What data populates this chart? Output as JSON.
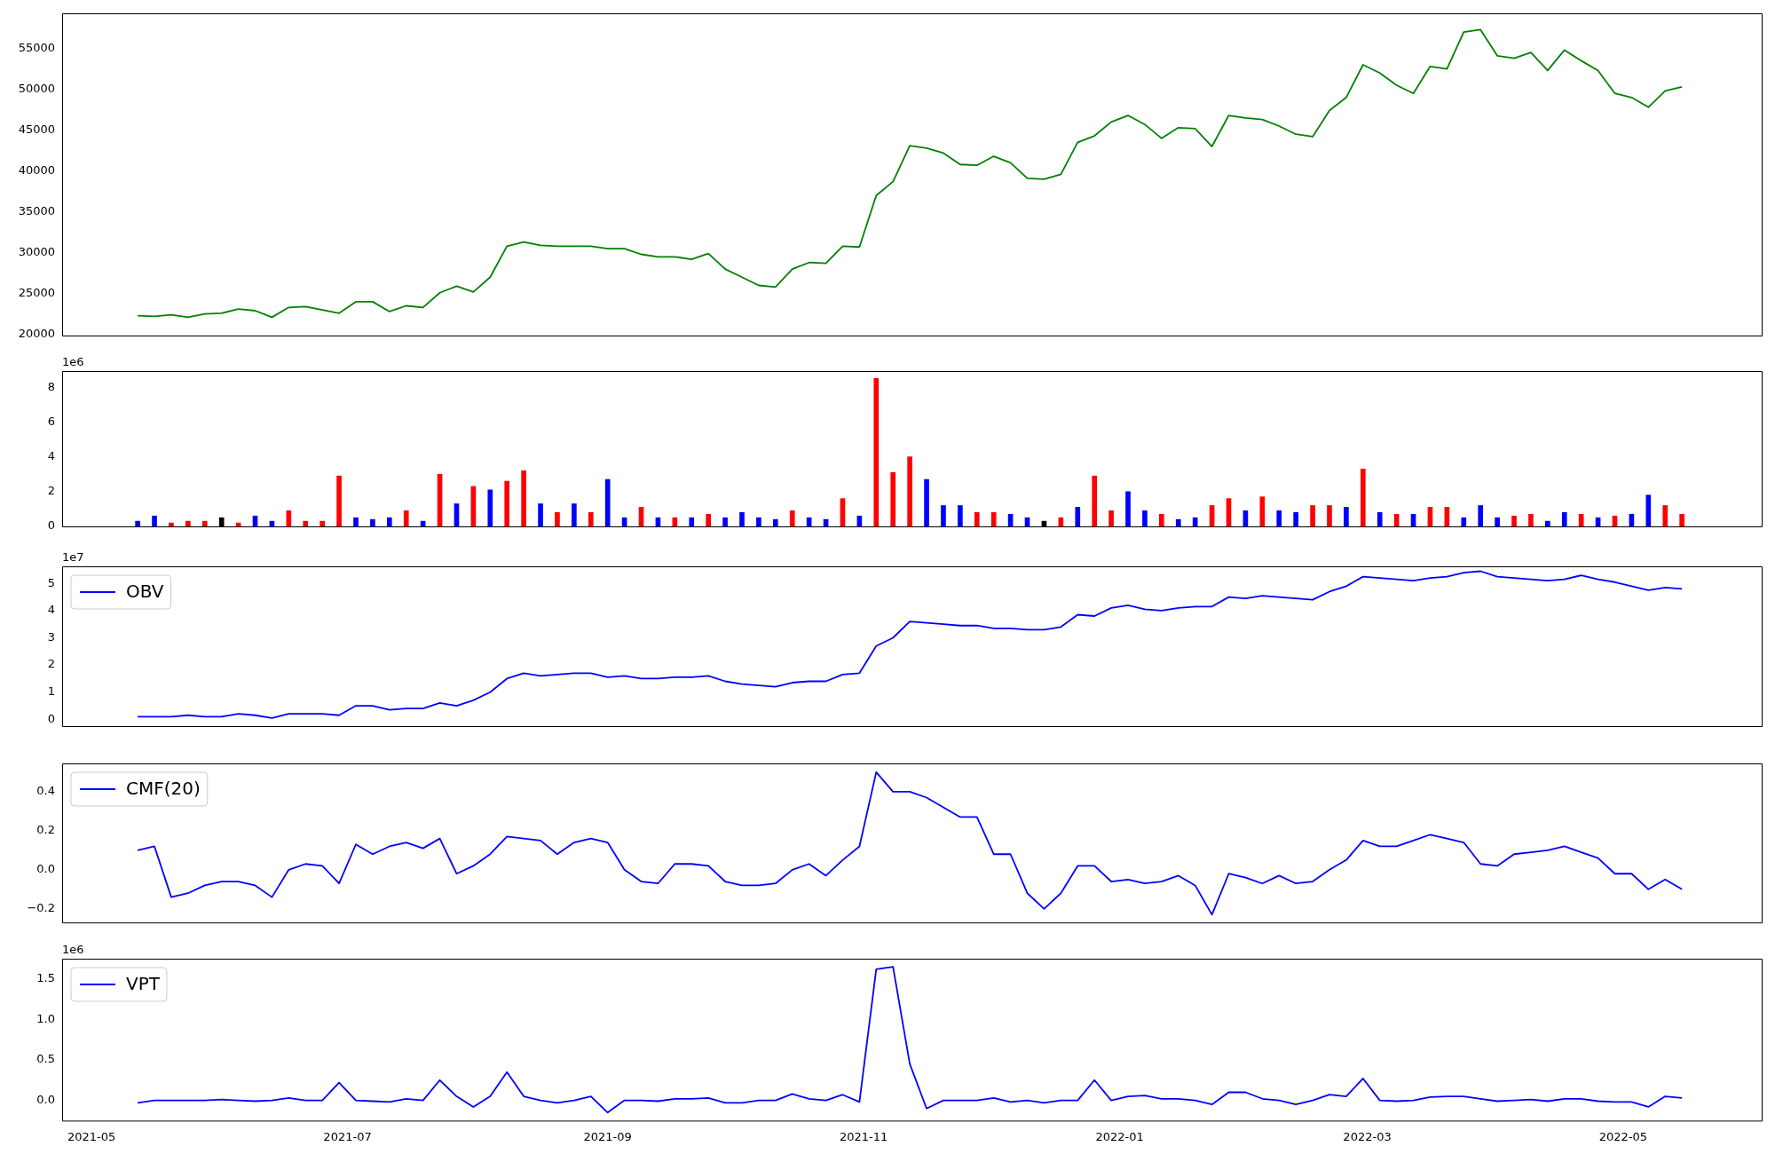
{
  "chart_data": [
    {
      "type": "line",
      "tick_labels": "y",
      "grid": false,
      "xlim": [
        "2021-04-24",
        "2022-06-03"
      ],
      "ylim": [
        19860,
        59300
      ],
      "yticks": [
        20000,
        25000,
        30000,
        35000,
        40000,
        45000,
        50000,
        55000
      ],
      "color": "#008000",
      "x": [
        "2021-05-12",
        "2021-05-16",
        "2021-05-20",
        "2021-05-24",
        "2021-05-28",
        "2021-06-01",
        "2021-06-05",
        "2021-06-09",
        "2021-06-13",
        "2021-06-17",
        "2021-06-21",
        "2021-06-25",
        "2021-06-29",
        "2021-07-03",
        "2021-07-07",
        "2021-07-11",
        "2021-07-15",
        "2021-07-19",
        "2021-07-23",
        "2021-07-27",
        "2021-07-31",
        "2021-08-04",
        "2021-08-08",
        "2021-08-12",
        "2021-08-16",
        "2021-08-20",
        "2021-08-24",
        "2021-08-28",
        "2021-09-01",
        "2021-09-05",
        "2021-09-09",
        "2021-09-13",
        "2021-09-17",
        "2021-09-21",
        "2021-09-25",
        "2021-09-29",
        "2021-10-03",
        "2021-10-07",
        "2021-10-11",
        "2021-10-15",
        "2021-10-19",
        "2021-10-23",
        "2021-10-27",
        "2021-10-31",
        "2021-11-04",
        "2021-11-08",
        "2021-11-12",
        "2021-11-16",
        "2021-11-20",
        "2021-11-24",
        "2021-11-28",
        "2021-12-02",
        "2021-12-06",
        "2021-12-10",
        "2021-12-14",
        "2021-12-18",
        "2021-12-22",
        "2021-12-26",
        "2021-12-30",
        "2022-01-03",
        "2022-01-07",
        "2022-01-11",
        "2022-01-15",
        "2022-01-19",
        "2022-01-23",
        "2022-01-27",
        "2022-01-31",
        "2022-02-04",
        "2022-02-08",
        "2022-02-12",
        "2022-02-16",
        "2022-02-20",
        "2022-02-24",
        "2022-02-28",
        "2022-03-04",
        "2022-03-08",
        "2022-03-12",
        "2022-03-16",
        "2022-03-20",
        "2022-03-24",
        "2022-03-28",
        "2022-04-01",
        "2022-04-05",
        "2022-04-09",
        "2022-04-13",
        "2022-04-17",
        "2022-04-21",
        "2022-04-25",
        "2022-04-29",
        "2022-05-03",
        "2022-05-07",
        "2022-05-11",
        "2022-05-15"
      ],
      "values": [
        22300,
        22200,
        22400,
        22100,
        22500,
        22600,
        23100,
        22900,
        22100,
        23300,
        23400,
        23000,
        22600,
        24000,
        24000,
        22800,
        23500,
        23300,
        25100,
        25900,
        25200,
        27000,
        30800,
        31300,
        30900,
        30800,
        30800,
        30800,
        30500,
        30500,
        29800,
        29500,
        29500,
        29200,
        29900,
        28000,
        27000,
        26000,
        25800,
        28000,
        28800,
        28700,
        30800,
        30700,
        37000,
        38700,
        43100,
        42800,
        42200,
        40800,
        40700,
        41800,
        41000,
        39100,
        39000,
        39600,
        43500,
        44300,
        46000,
        46800,
        45700,
        44000,
        45300,
        45200,
        43000,
        46800,
        46500,
        46300,
        45500,
        44500,
        44200,
        47400,
        49000,
        53000,
        52000,
        50500,
        49500,
        52800,
        52500,
        57000,
        57300,
        54100,
        53800,
        54500,
        52300,
        54800,
        53500,
        52300,
        49500,
        49000,
        47800,
        49800,
        50300
      ]
    },
    {
      "type": "bar",
      "tick_labels": "y",
      "grid": false,
      "annotations": [
        "1e6"
      ],
      "xlim": [
        "2021-04-24",
        "2022-06-03"
      ],
      "ylim": [
        0,
        8.93
      ],
      "yticks": [
        0,
        2,
        4,
        6,
        8
      ],
      "x": [
        "2021-05-12",
        "2021-05-16",
        "2021-05-20",
        "2021-05-24",
        "2021-05-28",
        "2021-06-01",
        "2021-06-05",
        "2021-06-09",
        "2021-06-13",
        "2021-06-17",
        "2021-06-21",
        "2021-06-25",
        "2021-06-29",
        "2021-07-03",
        "2021-07-07",
        "2021-07-11",
        "2021-07-15",
        "2021-07-19",
        "2021-07-23",
        "2021-07-27",
        "2021-07-31",
        "2021-08-04",
        "2021-08-08",
        "2021-08-12",
        "2021-08-16",
        "2021-08-20",
        "2021-08-24",
        "2021-08-28",
        "2021-09-01",
        "2021-09-05",
        "2021-09-09",
        "2021-09-13",
        "2021-09-17",
        "2021-09-21",
        "2021-09-25",
        "2021-09-29",
        "2021-10-03",
        "2021-10-07",
        "2021-10-11",
        "2021-10-15",
        "2021-10-19",
        "2021-10-23",
        "2021-10-27",
        "2021-10-31",
        "2021-11-04",
        "2021-11-08",
        "2021-11-12",
        "2021-11-16",
        "2021-11-20",
        "2021-11-24",
        "2021-11-28",
        "2021-12-02",
        "2021-12-06",
        "2021-12-10",
        "2021-12-14",
        "2021-12-18",
        "2021-12-22",
        "2021-12-26",
        "2021-12-30",
        "2022-01-03",
        "2022-01-07",
        "2022-01-11",
        "2022-01-15",
        "2022-01-19",
        "2022-01-23",
        "2022-01-27",
        "2022-01-31",
        "2022-02-04",
        "2022-02-08",
        "2022-02-12",
        "2022-02-16",
        "2022-02-20",
        "2022-02-24",
        "2022-02-28",
        "2022-03-04",
        "2022-03-08",
        "2022-03-12",
        "2022-03-16",
        "2022-03-20",
        "2022-03-24",
        "2022-03-28",
        "2022-04-01",
        "2022-04-05",
        "2022-04-09",
        "2022-04-13",
        "2022-04-17",
        "2022-04-21",
        "2022-04-25",
        "2022-04-29",
        "2022-05-03",
        "2022-05-07",
        "2022-05-11",
        "2022-05-15"
      ],
      "values": [
        0.3,
        0.6,
        0.2,
        0.3,
        0.3,
        0.5,
        0.2,
        0.6,
        0.3,
        0.9,
        0.3,
        0.3,
        2.9,
        0.5,
        0.4,
        0.5,
        0.9,
        0.3,
        3.0,
        1.3,
        2.3,
        2.1,
        2.6,
        3.2,
        1.3,
        0.8,
        1.3,
        0.8,
        2.7,
        0.5,
        1.1,
        0.5,
        0.5,
        0.5,
        0.7,
        0.5,
        0.8,
        0.5,
        0.4,
        0.9,
        0.5,
        0.4,
        1.6,
        0.6,
        8.5,
        3.1,
        4.0,
        2.7,
        1.2,
        1.2,
        0.8,
        0.8,
        0.7,
        0.5,
        0.3,
        0.5,
        1.1,
        2.9,
        0.9,
        2.0,
        0.9,
        0.7,
        0.4,
        0.5,
        1.2,
        1.6,
        0.9,
        1.7,
        0.9,
        0.8,
        1.2,
        1.2,
        1.1,
        3.3,
        0.8,
        0.7,
        0.7,
        1.1,
        1.1,
        0.5,
        1.2,
        0.5,
        0.6,
        0.7,
        0.3,
        0.8,
        0.7,
        0.5,
        0.6,
        0.7,
        1.8,
        1.2,
        0.7
      ],
      "colors": [
        "#0000ff",
        "#0000ff",
        "#ff0000",
        "#ff0000",
        "#ff0000",
        "#000000",
        "#ff0000",
        "#0000ff",
        "#0000ff",
        "#ff0000",
        "#ff0000",
        "#ff0000",
        "#ff0000",
        "#0000ff",
        "#0000ff",
        "#0000ff",
        "#ff0000",
        "#0000ff",
        "#ff0000",
        "#0000ff",
        "#ff0000",
        "#0000ff",
        "#ff0000",
        "#ff0000",
        "#0000ff",
        "#ff0000",
        "#0000ff",
        "#ff0000",
        "#0000ff",
        "#0000ff",
        "#ff0000",
        "#0000ff",
        "#ff0000",
        "#0000ff",
        "#ff0000",
        "#0000ff",
        "#0000ff",
        "#0000ff",
        "#0000ff",
        "#ff0000",
        "#0000ff",
        "#0000ff",
        "#ff0000",
        "#0000ff",
        "#ff0000",
        "#ff0000",
        "#ff0000",
        "#0000ff",
        "#0000ff",
        "#0000ff",
        "#ff0000",
        "#ff0000",
        "#0000ff",
        "#0000ff",
        "#000000",
        "#ff0000",
        "#0000ff",
        "#ff0000",
        "#ff0000",
        "#0000ff",
        "#0000ff",
        "#ff0000",
        "#0000ff",
        "#0000ff",
        "#ff0000",
        "#ff0000",
        "#0000ff",
        "#ff0000",
        "#0000ff",
        "#0000ff",
        "#ff0000",
        "#ff0000",
        "#0000ff",
        "#ff0000",
        "#0000ff",
        "#ff0000",
        "#0000ff",
        "#ff0000",
        "#ff0000",
        "#0000ff",
        "#0000ff",
        "#0000ff",
        "#ff0000",
        "#ff0000",
        "#0000ff",
        "#0000ff",
        "#ff0000",
        "#0000ff",
        "#ff0000",
        "#0000ff",
        "#0000ff",
        "#ff0000",
        "#ff0000"
      ]
    },
    {
      "type": "line",
      "tick_labels": "y",
      "grid": false,
      "legend": "top left",
      "annotations": [
        "1e7"
      ],
      "xlim": [
        "2021-04-24",
        "2022-06-03"
      ],
      "ylim": [
        -0.25,
        5.63
      ],
      "yticks": [
        0,
        1,
        2,
        3,
        4,
        5
      ],
      "x": [
        "2021-05-12",
        "2021-05-16",
        "2021-05-20",
        "2021-05-24",
        "2021-05-28",
        "2021-06-01",
        "2021-06-05",
        "2021-06-09",
        "2021-06-13",
        "2021-06-17",
        "2021-06-21",
        "2021-06-25",
        "2021-06-29",
        "2021-07-03",
        "2021-07-07",
        "2021-07-11",
        "2021-07-15",
        "2021-07-19",
        "2021-07-23",
        "2021-07-27",
        "2021-07-31",
        "2021-08-04",
        "2021-08-08",
        "2021-08-12",
        "2021-08-16",
        "2021-08-20",
        "2021-08-24",
        "2021-08-28",
        "2021-09-01",
        "2021-09-05",
        "2021-09-09",
        "2021-09-13",
        "2021-09-17",
        "2021-09-21",
        "2021-09-25",
        "2021-09-29",
        "2021-10-03",
        "2021-10-07",
        "2021-10-11",
        "2021-10-15",
        "2021-10-19",
        "2021-10-23",
        "2021-10-27",
        "2021-10-31",
        "2021-11-04",
        "2021-11-08",
        "2021-11-12",
        "2021-11-16",
        "2021-11-20",
        "2021-11-24",
        "2021-11-28",
        "2021-12-02",
        "2021-12-06",
        "2021-12-10",
        "2021-12-14",
        "2021-12-18",
        "2021-12-22",
        "2021-12-26",
        "2021-12-30",
        "2022-01-03",
        "2022-01-07",
        "2022-01-11",
        "2022-01-15",
        "2022-01-19",
        "2022-01-23",
        "2022-01-27",
        "2022-01-31",
        "2022-02-04",
        "2022-02-08",
        "2022-02-12",
        "2022-02-16",
        "2022-02-20",
        "2022-02-24",
        "2022-02-28",
        "2022-03-04",
        "2022-03-08",
        "2022-03-12",
        "2022-03-16",
        "2022-03-20",
        "2022-03-24",
        "2022-03-28",
        "2022-04-01",
        "2022-04-05",
        "2022-04-09",
        "2022-04-13",
        "2022-04-17",
        "2022-04-21",
        "2022-04-25",
        "2022-04-29",
        "2022-05-03",
        "2022-05-07",
        "2022-05-11",
        "2022-05-15"
      ],
      "series": [
        {
          "name": "OBV",
          "color": "#0000ff",
          "values": [
            0.1,
            0.1,
            0.1,
            0.15,
            0.1,
            0.1,
            0.2,
            0.15,
            0.05,
            0.2,
            0.2,
            0.2,
            0.15,
            0.5,
            0.5,
            0.35,
            0.4,
            0.4,
            0.6,
            0.5,
            0.7,
            1.0,
            1.5,
            1.7,
            1.6,
            1.65,
            1.7,
            1.7,
            1.55,
            1.6,
            1.5,
            1.5,
            1.55,
            1.55,
            1.6,
            1.4,
            1.3,
            1.25,
            1.2,
            1.35,
            1.4,
            1.4,
            1.65,
            1.7,
            2.7,
            3.0,
            3.6,
            3.55,
            3.5,
            3.45,
            3.45,
            3.35,
            3.35,
            3.3,
            3.3,
            3.4,
            3.85,
            3.8,
            4.1,
            4.2,
            4.05,
            4.0,
            4.1,
            4.15,
            4.15,
            4.5,
            4.45,
            4.55,
            4.5,
            4.45,
            4.4,
            4.7,
            4.9,
            5.25,
            5.2,
            5.15,
            5.1,
            5.2,
            5.25,
            5.4,
            5.45,
            5.25,
            5.2,
            5.15,
            5.1,
            5.15,
            5.3,
            5.15,
            5.05,
            4.9,
            4.75,
            4.85,
            4.8
          ]
        }
      ]
    },
    {
      "type": "line",
      "tick_labels": "y",
      "grid": false,
      "legend": "top left",
      "xlim": [
        "2021-04-24",
        "2022-06-03"
      ],
      "ylim": [
        -0.27,
        0.545
      ],
      "yticks": [
        {
          "value": -0.2,
          "label": "−0.2"
        },
        {
          "value": 0,
          "label": "0.0"
        },
        {
          "value": 0.2,
          "label": "0.2"
        },
        {
          "value": 0.4,
          "label": "0.4"
        }
      ],
      "x": [
        "2021-05-12",
        "2021-05-16",
        "2021-05-20",
        "2021-05-24",
        "2021-05-28",
        "2021-06-01",
        "2021-06-05",
        "2021-06-09",
        "2021-06-13",
        "2021-06-17",
        "2021-06-21",
        "2021-06-25",
        "2021-06-29",
        "2021-07-03",
        "2021-07-07",
        "2021-07-11",
        "2021-07-15",
        "2021-07-19",
        "2021-07-23",
        "2021-07-27",
        "2021-07-31",
        "2021-08-04",
        "2021-08-08",
        "2021-08-12",
        "2021-08-16",
        "2021-08-20",
        "2021-08-24",
        "2021-08-28",
        "2021-09-01",
        "2021-09-05",
        "2021-09-09",
        "2021-09-13",
        "2021-09-17",
        "2021-09-21",
        "2021-09-25",
        "2021-09-29",
        "2021-10-03",
        "2021-10-07",
        "2021-10-11",
        "2021-10-15",
        "2021-10-19",
        "2021-10-23",
        "2021-10-27",
        "2021-10-31",
        "2021-11-04",
        "2021-11-08",
        "2021-11-12",
        "2021-11-16",
        "2021-11-20",
        "2021-11-24",
        "2021-11-28",
        "2021-12-02",
        "2021-12-06",
        "2021-12-10",
        "2021-12-14",
        "2021-12-18",
        "2021-12-22",
        "2021-12-26",
        "2021-12-30",
        "2022-01-03",
        "2022-01-07",
        "2022-01-11",
        "2022-01-15",
        "2022-01-19",
        "2022-01-23",
        "2022-01-27",
        "2022-01-31",
        "2022-02-04",
        "2022-02-08",
        "2022-02-12",
        "2022-02-16",
        "2022-02-20",
        "2022-02-24",
        "2022-02-28",
        "2022-03-04",
        "2022-03-08",
        "2022-03-12",
        "2022-03-16",
        "2022-03-20",
        "2022-03-24",
        "2022-03-28",
        "2022-04-01",
        "2022-04-05",
        "2022-04-09",
        "2022-04-13",
        "2022-04-17",
        "2022-04-21",
        "2022-04-25",
        "2022-04-29",
        "2022-05-03",
        "2022-05-07",
        "2022-05-11",
        "2022-05-15"
      ],
      "series": [
        {
          "name": "CMF(20)",
          "color": "#0000ff",
          "values": [
            0.1,
            0.12,
            -0.14,
            -0.12,
            -0.08,
            -0.06,
            -0.06,
            -0.08,
            -0.14,
            0,
            0.03,
            0.02,
            -0.07,
            0.13,
            0.08,
            0.12,
            0.14,
            0.11,
            0.16,
            -0.02,
            0.02,
            0.08,
            0.17,
            0.16,
            0.15,
            0.08,
            0.14,
            0.16,
            0.14,
            0,
            -0.06,
            -0.07,
            0.03,
            0.03,
            0.02,
            -0.06,
            -0.08,
            -0.08,
            -0.07,
            0,
            0.03,
            -0.03,
            0.05,
            0.12,
            0.5,
            0.4,
            0.4,
            0.37,
            0.32,
            0.27,
            0.27,
            0.08,
            0.08,
            -0.12,
            -0.2,
            -0.12,
            0.02,
            0.02,
            -0.06,
            -0.05,
            -0.07,
            -0.06,
            -0.03,
            -0.08,
            -0.23,
            -0.02,
            -0.04,
            -0.07,
            -0.03,
            -0.07,
            -0.06,
            0,
            0.05,
            0.15,
            0.12,
            0.12,
            0.15,
            0.18,
            0.16,
            0.14,
            0.03,
            0.02,
            0.08,
            0.09,
            0.1,
            0.12,
            0.09,
            0.06,
            -0.02,
            -0.02,
            -0.1,
            -0.05,
            -0.1
          ]
        }
      ]
    },
    {
      "type": "line",
      "grid": false,
      "legend": "top left",
      "annotations": [
        "1e6"
      ],
      "xlim": [
        "2021-04-24",
        "2022-06-03"
      ],
      "ylim": [
        -0.25,
        1.75
      ],
      "yticks": [
        {
          "value": 0,
          "label": "0.0"
        },
        {
          "value": 0.5,
          "label": "0.5"
        },
        {
          "value": 1,
          "label": "1.0"
        },
        1.5
      ],
      "xticks": [
        "2021-05",
        "2021-07",
        "2021-09",
        "2021-11",
        "2022-01",
        "2022-03",
        "2022-05"
      ],
      "x": [
        "2021-05-12",
        "2021-05-16",
        "2021-05-20",
        "2021-05-24",
        "2021-05-28",
        "2021-06-01",
        "2021-06-05",
        "2021-06-09",
        "2021-06-13",
        "2021-06-17",
        "2021-06-21",
        "2021-06-25",
        "2021-06-29",
        "2021-07-03",
        "2021-07-07",
        "2021-07-11",
        "2021-07-15",
        "2021-07-19",
        "2021-07-23",
        "2021-07-27",
        "2021-07-31",
        "2021-08-04",
        "2021-08-08",
        "2021-08-12",
        "2021-08-16",
        "2021-08-20",
        "2021-08-24",
        "2021-08-28",
        "2021-09-01",
        "2021-09-05",
        "2021-09-09",
        "2021-09-13",
        "2021-09-17",
        "2021-09-21",
        "2021-09-25",
        "2021-09-29",
        "2021-10-03",
        "2021-10-07",
        "2021-10-11",
        "2021-10-15",
        "2021-10-19",
        "2021-10-23",
        "2021-10-27",
        "2021-10-31",
        "2021-11-04",
        "2021-11-08",
        "2021-11-12",
        "2021-11-16",
        "2021-11-20",
        "2021-11-24",
        "2021-11-28",
        "2021-12-02",
        "2021-12-06",
        "2021-12-10",
        "2021-12-14",
        "2021-12-18",
        "2021-12-22",
        "2021-12-26",
        "2021-12-30",
        "2022-01-03",
        "2022-01-07",
        "2022-01-11",
        "2022-01-15",
        "2022-01-19",
        "2022-01-23",
        "2022-01-27",
        "2022-01-31",
        "2022-02-04",
        "2022-02-08",
        "2022-02-12",
        "2022-02-16",
        "2022-02-20",
        "2022-02-24",
        "2022-02-28",
        "2022-03-04",
        "2022-03-08",
        "2022-03-12",
        "2022-03-16",
        "2022-03-20",
        "2022-03-24",
        "2022-03-28",
        "2022-04-01",
        "2022-04-05",
        "2022-04-09",
        "2022-04-13",
        "2022-04-17",
        "2022-04-21",
        "2022-04-25",
        "2022-04-29",
        "2022-05-03",
        "2022-05-07",
        "2022-05-11",
        "2022-05-15"
      ],
      "series": [
        {
          "name": "VPT",
          "color": "#0000ff",
          "values": [
            -0.03,
            0,
            0,
            0,
            0,
            0.01,
            0,
            -0.01,
            0,
            0.03,
            0,
            0,
            0.22,
            0,
            -0.01,
            -0.02,
            0.02,
            0,
            0.25,
            0.05,
            -0.08,
            0.05,
            0.35,
            0.05,
            0,
            -0.03,
            0,
            0.05,
            -0.15,
            0,
            0,
            -0.01,
            0.02,
            0.02,
            0.03,
            -0.03,
            -0.03,
            0,
            0,
            0.08,
            0.02,
            0,
            0.07,
            -0.02,
            1.62,
            1.65,
            0.45,
            -0.1,
            0,
            0,
            0,
            0.03,
            -0.02,
            0,
            -0.03,
            0,
            0,
            0.25,
            0,
            0.05,
            0.06,
            0.02,
            0.02,
            0,
            -0.05,
            0.1,
            0.1,
            0.02,
            0,
            -0.05,
            0,
            0.07,
            0.05,
            0.27,
            0,
            -0.01,
            0,
            0.04,
            0.05,
            0.05,
            0.02,
            -0.01,
            0,
            0.01,
            -0.01,
            0.02,
            0.02,
            -0.01,
            -0.02,
            -0.02,
            -0.08,
            0.05,
            0.03
          ]
        }
      ]
    }
  ]
}
